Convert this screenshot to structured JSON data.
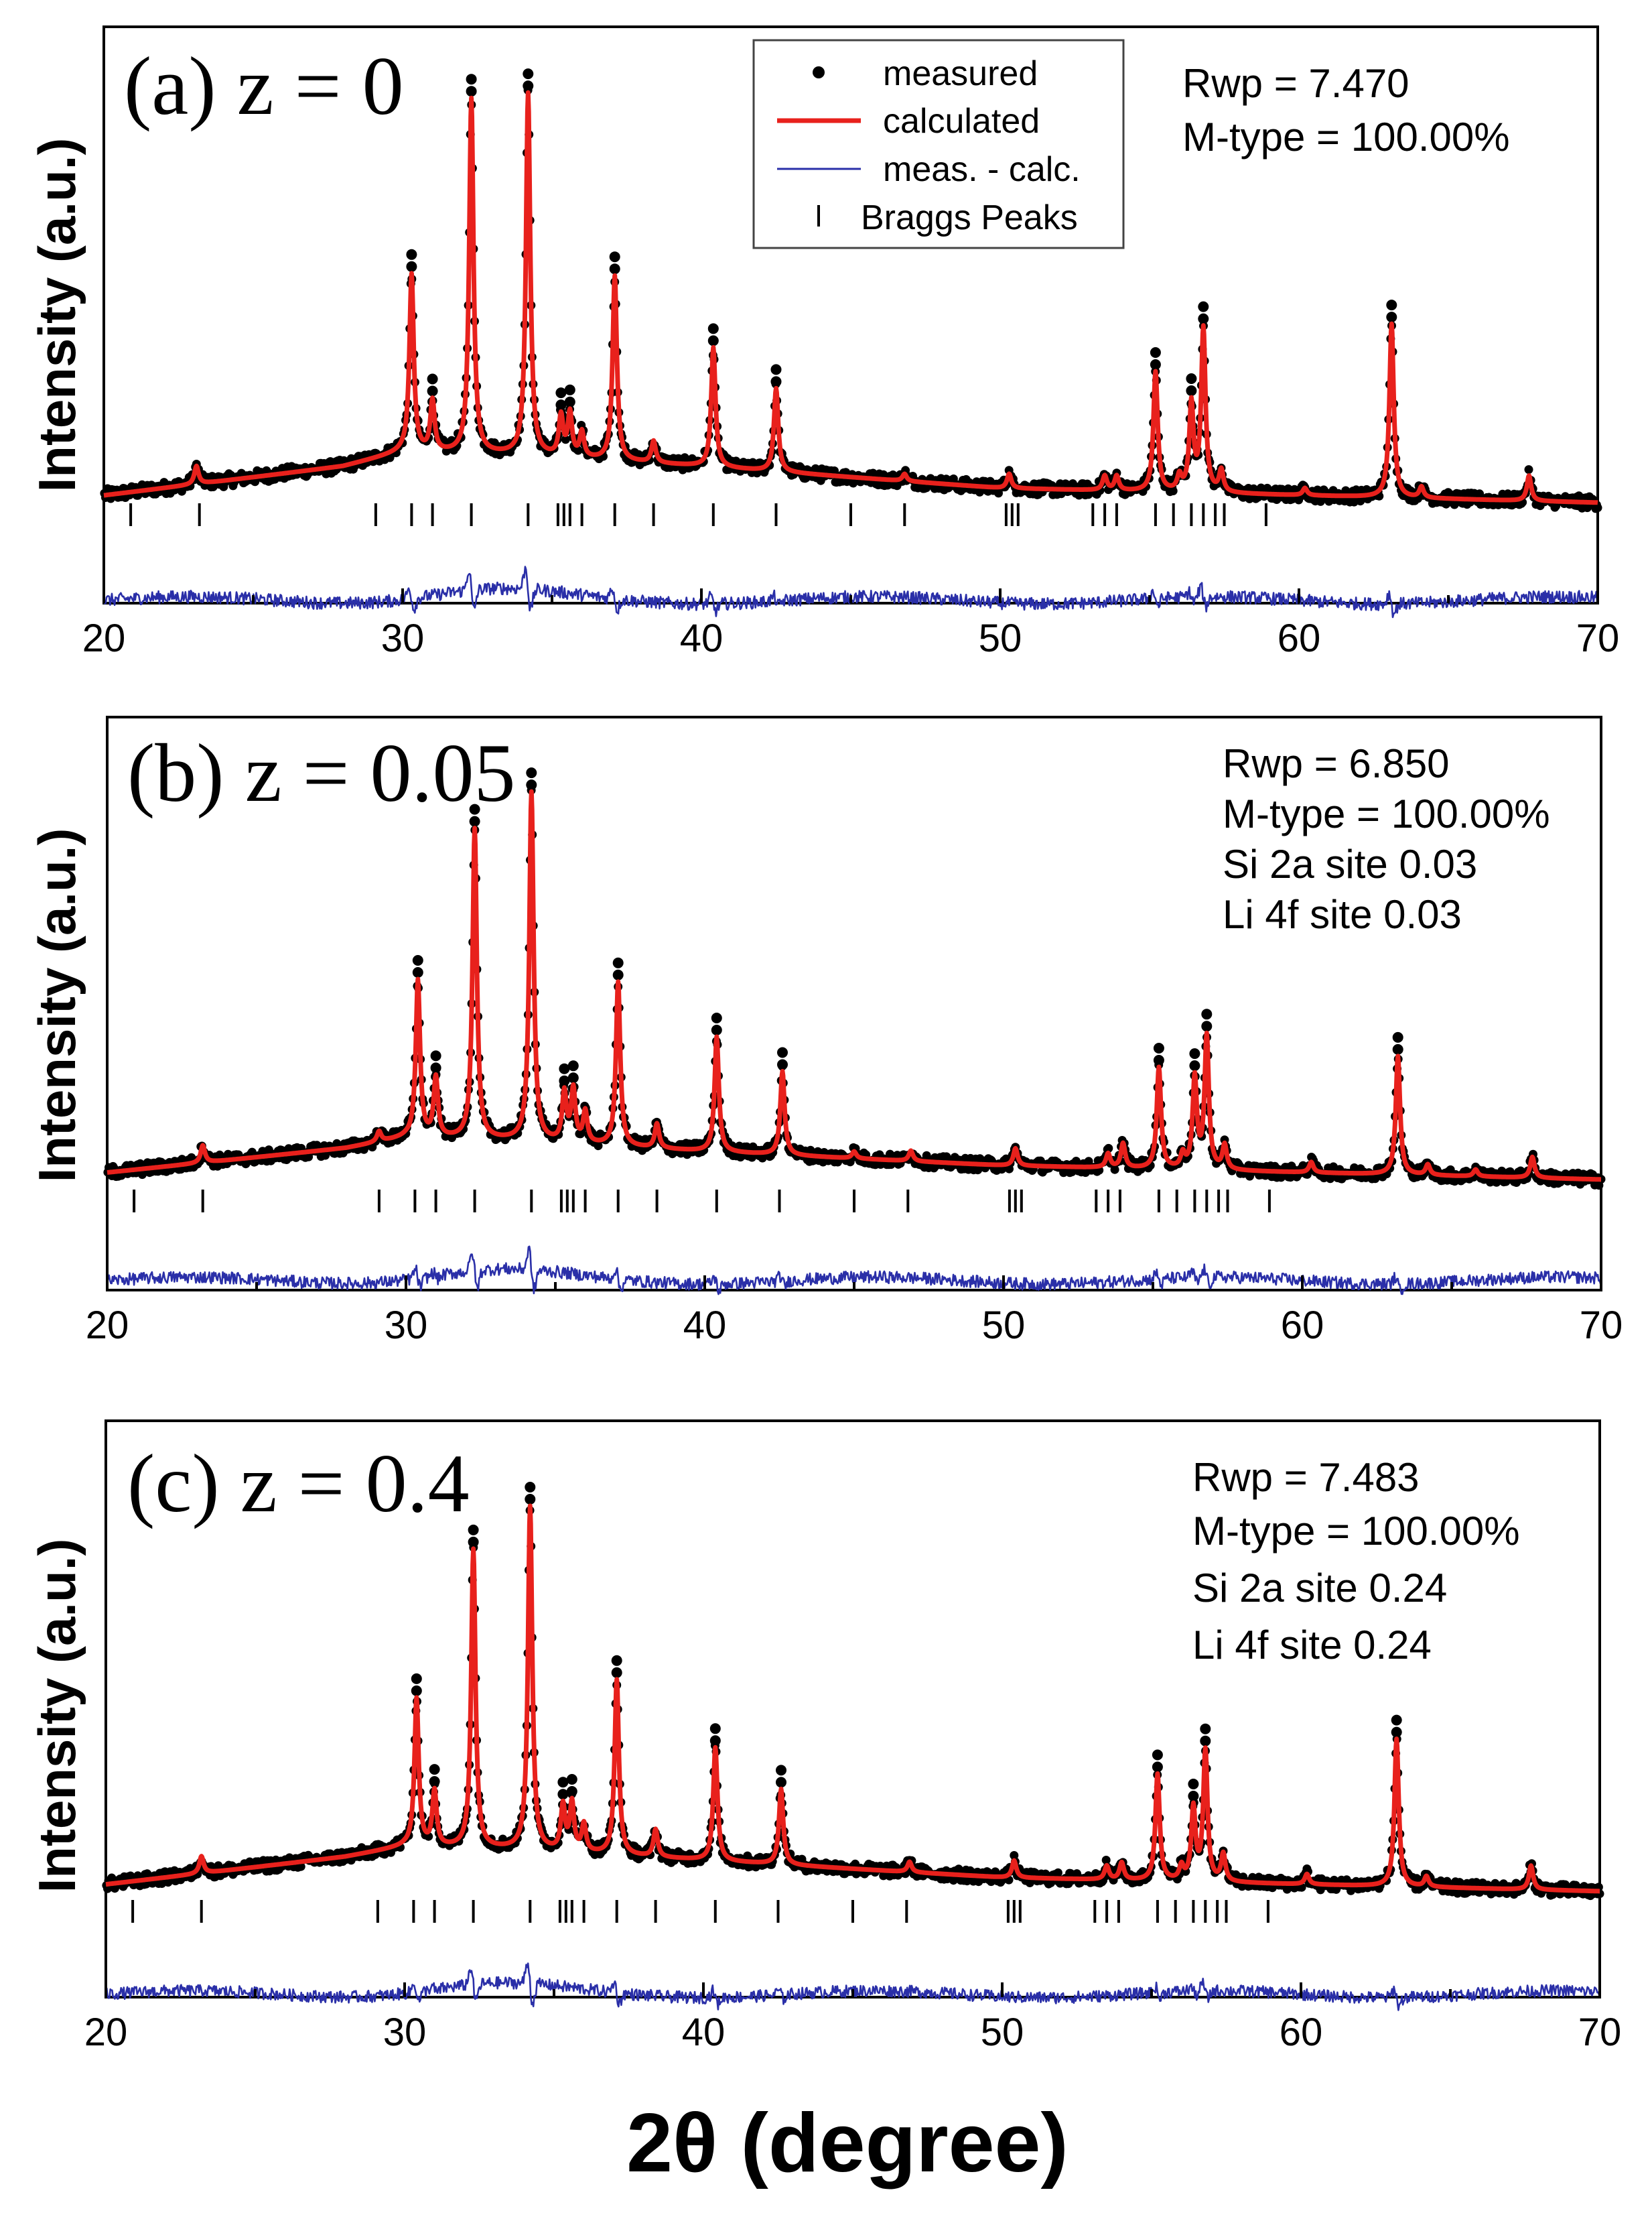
{
  "figure": {
    "xlabel": "2θ (degree)",
    "ylabel": "Intensity (a.u.)"
  },
  "legend": {
    "measured": "measured",
    "calculated": "calculated",
    "difference": "meas. - calc.",
    "bragg": "Braggs Peaks"
  },
  "colors": {
    "measured": "#000000",
    "calculated": "#e8211c",
    "difference": "#2a2fa8",
    "bragg": "#000000"
  },
  "chart_data": [
    {
      "type": "line",
      "panel_label": "(a) z = 0",
      "annotations": [
        "Rwp = 7.470",
        "M-type  = 100.00%"
      ],
      "xlabel": "2θ (degree)",
      "ylabel": "Intensity (a.u.)",
      "xlim": [
        20,
        70
      ],
      "ylim": [
        -0.4,
        1.2
      ],
      "xticks": [
        20,
        30,
        40,
        50,
        60,
        70
      ],
      "background": [
        [
          20,
          0.02
        ],
        [
          28,
          0.1
        ],
        [
          30,
          0.14
        ],
        [
          34,
          0.13
        ],
        [
          40,
          0.1
        ],
        [
          50,
          0.04
        ],
        [
          60,
          0.02
        ],
        [
          70,
          0.0
        ]
      ],
      "peaks": [
        [
          23.1,
          0.05
        ],
        [
          30.3,
          0.49
        ],
        [
          31.0,
          0.14
        ],
        [
          32.3,
          0.98
        ],
        [
          34.2,
          1.0
        ],
        [
          35.3,
          0.11
        ],
        [
          35.6,
          0.12
        ],
        [
          36.0,
          0.07
        ],
        [
          37.1,
          0.51
        ],
        [
          38.4,
          0.06
        ],
        [
          40.4,
          0.33
        ],
        [
          42.5,
          0.23
        ],
        [
          46.8,
          0.02
        ],
        [
          50.3,
          0.04
        ],
        [
          53.5,
          0.04
        ],
        [
          53.9,
          0.04
        ],
        [
          55.2,
          0.33
        ],
        [
          56.0,
          0.04
        ],
        [
          56.4,
          0.24
        ],
        [
          56.8,
          0.45
        ],
        [
          57.4,
          0.06
        ],
        [
          60.2,
          0.02
        ],
        [
          63.1,
          0.48
        ],
        [
          64.1,
          0.03
        ],
        [
          67.7,
          0.07
        ]
      ],
      "bragg_peaks": [
        20.9,
        23.2,
        29.1,
        30.3,
        31.0,
        32.3,
        34.2,
        35.2,
        35.4,
        35.6,
        36.0,
        37.1,
        38.4,
        40.4,
        42.5,
        45.0,
        46.8,
        50.2,
        50.4,
        50.6,
        53.1,
        53.5,
        53.9,
        55.2,
        55.8,
        56.4,
        56.8,
        57.2,
        57.5,
        58.9
      ],
      "difference_offset": -0.27
    },
    {
      "type": "line",
      "panel_label": "(b) z = 0.05",
      "annotations": [
        "Rwp = 6.850",
        "M-type  = 100.00%",
        "Si 2a site 0.03",
        "Li 4f site 0.03"
      ],
      "xlabel": "2θ (degree)",
      "ylabel": "Intensity (a.u.)",
      "xlim": [
        20,
        70
      ],
      "ylim": [
        -0.5,
        1.15
      ],
      "xticks": [
        20,
        30,
        40,
        50,
        60,
        70
      ],
      "background": [
        [
          20,
          0.02
        ],
        [
          28,
          0.09
        ],
        [
          30,
          0.12
        ],
        [
          34,
          0.11
        ],
        [
          40,
          0.08
        ],
        [
          50,
          0.04
        ],
        [
          60,
          0.02
        ],
        [
          70,
          0.0
        ]
      ],
      "peaks": [
        [
          23.2,
          0.05
        ],
        [
          29.1,
          0.03
        ],
        [
          30.4,
          0.45
        ],
        [
          31.0,
          0.17
        ],
        [
          32.3,
          0.89
        ],
        [
          34.2,
          1.0
        ],
        [
          35.3,
          0.14
        ],
        [
          35.6,
          0.15
        ],
        [
          36.0,
          0.09
        ],
        [
          37.1,
          0.47
        ],
        [
          38.4,
          0.07
        ],
        [
          40.4,
          0.33
        ],
        [
          42.6,
          0.24
        ],
        [
          45.0,
          0.02
        ],
        [
          46.9,
          0.03
        ],
        [
          50.4,
          0.05
        ],
        [
          53.5,
          0.04
        ],
        [
          54.0,
          0.07
        ],
        [
          55.2,
          0.29
        ],
        [
          56.0,
          0.04
        ],
        [
          56.4,
          0.26
        ],
        [
          56.8,
          0.38
        ],
        [
          57.4,
          0.07
        ],
        [
          60.3,
          0.03
        ],
        [
          63.2,
          0.34
        ],
        [
          64.2,
          0.03
        ],
        [
          65.8,
          0.02
        ],
        [
          67.7,
          0.06
        ]
      ],
      "bragg_peaks": [
        20.9,
        23.2,
        29.1,
        30.3,
        31.0,
        32.3,
        34.2,
        35.2,
        35.4,
        35.6,
        36.0,
        37.1,
        38.4,
        40.4,
        42.5,
        45.0,
        46.8,
        50.2,
        50.4,
        50.6,
        53.1,
        53.5,
        53.9,
        55.2,
        55.8,
        56.4,
        56.8,
        57.2,
        57.5,
        58.9
      ],
      "difference_offset": -0.29
    },
    {
      "type": "line",
      "panel_label": "(c) z = 0.4",
      "annotations": [
        "Rwp =  7.483",
        "M-type  = 100.00%",
        "Si 2a site 0.24",
        "Li 4f site 0.24"
      ],
      "xlabel": "2θ (degree)",
      "ylabel": "Intensity (a.u.)",
      "xlim": [
        20,
        70
      ],
      "ylim": [
        -0.5,
        1.5
      ],
      "xticks": [
        20,
        30,
        40,
        50,
        60,
        70
      ],
      "background": [
        [
          20,
          0.02
        ],
        [
          28,
          0.1
        ],
        [
          30,
          0.13
        ],
        [
          34,
          0.12
        ],
        [
          40,
          0.09
        ],
        [
          50,
          0.04
        ],
        [
          60,
          0.02
        ],
        [
          70,
          0.0
        ]
      ],
      "peaks": [
        [
          23.2,
          0.05
        ],
        [
          30.4,
          0.43
        ],
        [
          31.0,
          0.16
        ],
        [
          32.3,
          0.87
        ],
        [
          34.2,
          1.0
        ],
        [
          35.3,
          0.13
        ],
        [
          35.6,
          0.14
        ],
        [
          36.0,
          0.08
        ],
        [
          37.1,
          0.51
        ],
        [
          38.4,
          0.08
        ],
        [
          40.4,
          0.33
        ],
        [
          42.6,
          0.22
        ],
        [
          46.9,
          0.03
        ],
        [
          50.4,
          0.05
        ],
        [
          53.5,
          0.04
        ],
        [
          54.0,
          0.05
        ],
        [
          55.2,
          0.31
        ],
        [
          56.0,
          0.04
        ],
        [
          56.4,
          0.21
        ],
        [
          56.8,
          0.38
        ],
        [
          57.4,
          0.08
        ],
        [
          60.2,
          0.03
        ],
        [
          63.2,
          0.43
        ],
        [
          64.2,
          0.03
        ],
        [
          67.7,
          0.07
        ]
      ],
      "bragg_peaks": [
        20.9,
        23.2,
        29.1,
        30.3,
        31.0,
        32.3,
        34.2,
        35.2,
        35.4,
        35.6,
        36.0,
        37.1,
        38.4,
        40.4,
        42.5,
        45.0,
        46.8,
        50.2,
        50.4,
        50.6,
        53.1,
        53.5,
        53.9,
        55.2,
        55.8,
        56.4,
        56.8,
        57.2,
        57.5,
        58.9
      ],
      "difference_offset": -0.3
    }
  ]
}
